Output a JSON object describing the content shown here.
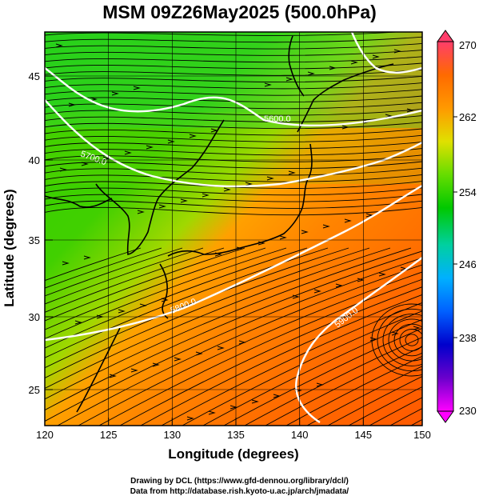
{
  "title": "MSM 09Z26May2025 (500.0hPa)",
  "x_axis": {
    "label": "Longitude (degrees)",
    "ticks": [
      "120",
      "125",
      "130",
      "135",
      "140",
      "145",
      "150"
    ]
  },
  "y_axis": {
    "label": "Latitude  (degrees)",
    "ticks": [
      "25",
      "30",
      "35",
      "40",
      "45"
    ]
  },
  "colorbar": {
    "ticks": [
      "270",
      "262",
      "254",
      "246",
      "238",
      "230"
    ],
    "stops": [
      "#ff3d6a",
      "#ff6a00",
      "#ff9900",
      "#e0e000",
      "#66dd00",
      "#00c800",
      "#00d0a0",
      "#00b0ff",
      "#0060ff",
      "#0000cc",
      "#6a00cc",
      "#ff00ff"
    ]
  },
  "contour_labels": [
    "5600.0",
    "5700.0",
    "5800.0",
    "5900.0"
  ],
  "credits": [
    "Drawing by DCL (https://www.gfd-dennou.org/library/dcl/)",
    "Data from http://database.rish.kyoto-u.ac.jp/arch/jmadata/"
  ]
}
